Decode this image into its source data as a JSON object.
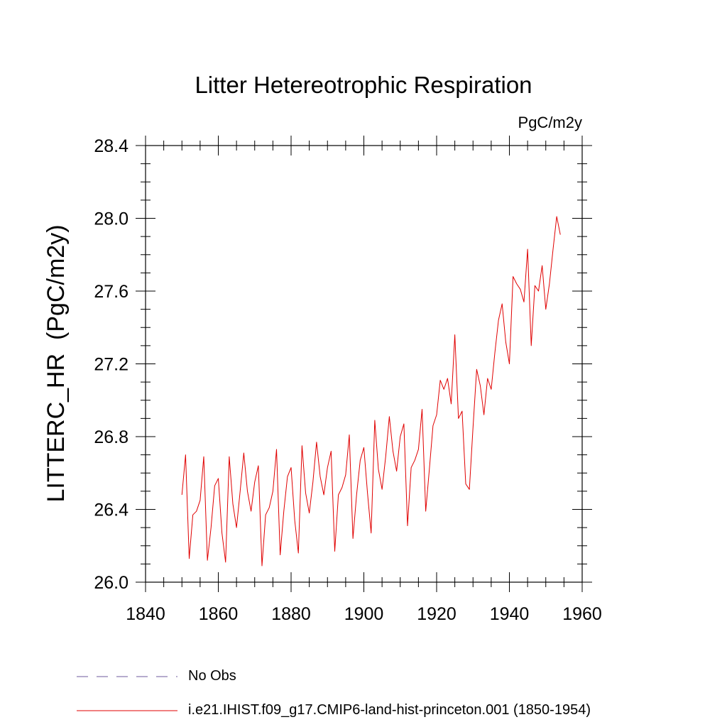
{
  "chart_data": {
    "type": "line",
    "title": "Litter Hetereotrophic Respiration",
    "units": "PgC/m2y",
    "ylabel": "LITTERC_HR  (PgC/m2y)",
    "xlabel": "",
    "xlim": [
      1840,
      1960
    ],
    "ylim": [
      26.0,
      28.4
    ],
    "x_ticks": [
      1840,
      1860,
      1880,
      1900,
      1920,
      1940,
      1960
    ],
    "x_tick_labels": [
      "1840",
      "1860",
      "1880",
      "1900",
      "1920",
      "1940",
      "1960"
    ],
    "y_ticks": [
      26.0,
      26.4,
      26.8,
      27.2,
      27.6,
      28.0,
      28.4
    ],
    "y_tick_labels": [
      "26.0",
      "26.4",
      "26.8",
      "27.2",
      "27.6",
      "28.0",
      "28.4"
    ],
    "grid": false,
    "legend_placement": "bottom",
    "series": [
      {
        "name": "i.e21.IHIST.f09_g17.CMIP6-land-hist-princeton.001 (1850-1954)",
        "color": "#e00000",
        "style": "solid",
        "x": [
          1850,
          1851,
          1852,
          1853,
          1854,
          1855,
          1856,
          1857,
          1858,
          1859,
          1860,
          1861,
          1862,
          1863,
          1864,
          1865,
          1866,
          1867,
          1868,
          1869,
          1870,
          1871,
          1872,
          1873,
          1874,
          1875,
          1876,
          1877,
          1878,
          1879,
          1880,
          1881,
          1882,
          1883,
          1884,
          1885,
          1886,
          1887,
          1888,
          1889,
          1890,
          1891,
          1892,
          1893,
          1894,
          1895,
          1896,
          1897,
          1898,
          1899,
          1900,
          1901,
          1902,
          1903,
          1904,
          1905,
          1906,
          1907,
          1908,
          1909,
          1910,
          1911,
          1912,
          1913,
          1914,
          1915,
          1916,
          1917,
          1918,
          1919,
          1920,
          1921,
          1922,
          1923,
          1924,
          1925,
          1926,
          1927,
          1928,
          1929,
          1930,
          1931,
          1932,
          1933,
          1934,
          1935,
          1936,
          1937,
          1938,
          1939,
          1940,
          1941,
          1942,
          1943,
          1944,
          1945,
          1946,
          1947,
          1948,
          1949,
          1950,
          1951,
          1952,
          1953,
          1954
        ],
        "y": [
          26.48,
          26.7,
          26.13,
          26.37,
          26.39,
          26.45,
          26.69,
          26.12,
          26.3,
          26.53,
          26.57,
          26.27,
          26.11,
          26.69,
          26.43,
          26.3,
          26.5,
          26.71,
          26.5,
          26.39,
          26.55,
          26.64,
          26.09,
          26.37,
          26.41,
          26.5,
          26.73,
          26.15,
          26.39,
          26.58,
          26.63,
          26.34,
          26.16,
          26.75,
          26.49,
          26.38,
          26.55,
          26.77,
          26.58,
          26.48,
          26.63,
          26.72,
          26.17,
          26.48,
          26.52,
          26.59,
          26.81,
          26.24,
          26.48,
          26.67,
          26.74,
          26.49,
          26.27,
          26.89,
          26.62,
          26.51,
          26.69,
          26.91,
          26.72,
          26.61,
          26.8,
          26.87,
          26.31,
          26.63,
          26.67,
          26.73,
          26.95,
          26.39,
          26.62,
          26.86,
          26.92,
          27.11,
          27.06,
          27.12,
          26.98,
          27.36,
          26.9,
          26.94,
          26.54,
          26.51,
          26.85,
          27.17,
          27.08,
          26.92,
          27.12,
          27.06,
          27.26,
          27.44,
          27.53,
          27.32,
          27.2,
          27.68,
          27.64,
          27.61,
          27.54,
          27.83,
          27.3,
          27.63,
          27.6,
          27.74,
          27.5,
          27.64,
          27.83,
          28.01,
          27.91
        ]
      }
    ],
    "obs_series": {
      "name": "No Obs",
      "color": "#8a7ab0",
      "style": "dashed"
    }
  }
}
